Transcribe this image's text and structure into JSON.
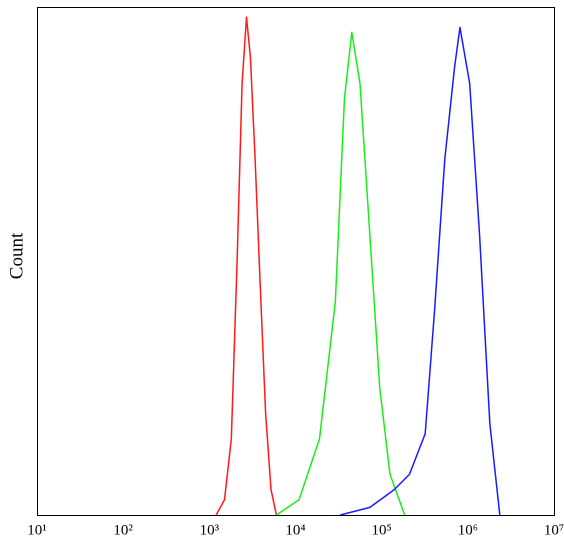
{
  "chart_data": {
    "type": "line",
    "y_label": "Count",
    "xscale": "log",
    "xlim": [
      10,
      10000000
    ],
    "ylim": [
      0,
      100
    ],
    "xticks": [
      {
        "value": 10,
        "label": "10¹"
      },
      {
        "value": 100,
        "label": "10²"
      },
      {
        "value": 1000,
        "label": "10³"
      },
      {
        "value": 10000,
        "label": "10⁴"
      },
      {
        "value": 100000,
        "label": "10⁵"
      },
      {
        "value": 1000000,
        "label": "10⁶"
      },
      {
        "value": 10000000,
        "label": "10⁷"
      }
    ],
    "series": [
      {
        "color": "#ff1a1a",
        "x": [
          1200,
          1500,
          1800,
          2100,
          2400,
          2700,
          3000,
          3400,
          3900,
          4500,
          5200,
          6000
        ],
        "values": [
          0,
          3,
          15,
          50,
          85,
          98,
          90,
          70,
          45,
          20,
          5,
          0
        ]
      },
      {
        "color": "#1aee1a",
        "x": [
          6000,
          11000,
          19000,
          29000,
          37000,
          45000,
          56000,
          73000,
          95000,
          125000,
          185000
        ],
        "values": [
          0,
          3,
          15,
          42,
          82,
          95,
          85,
          55,
          25,
          8,
          0
        ]
      },
      {
        "color": "#1a1aff",
        "x": [
          33000,
          73000,
          140000,
          210000,
          320000,
          410000,
          540000,
          700000,
          810000,
          1050000,
          1370000,
          1800000,
          2350000
        ],
        "values": [
          0,
          1.5,
          5,
          8,
          16,
          40,
          70,
          88,
          96,
          85,
          55,
          18,
          0
        ]
      }
    ]
  }
}
